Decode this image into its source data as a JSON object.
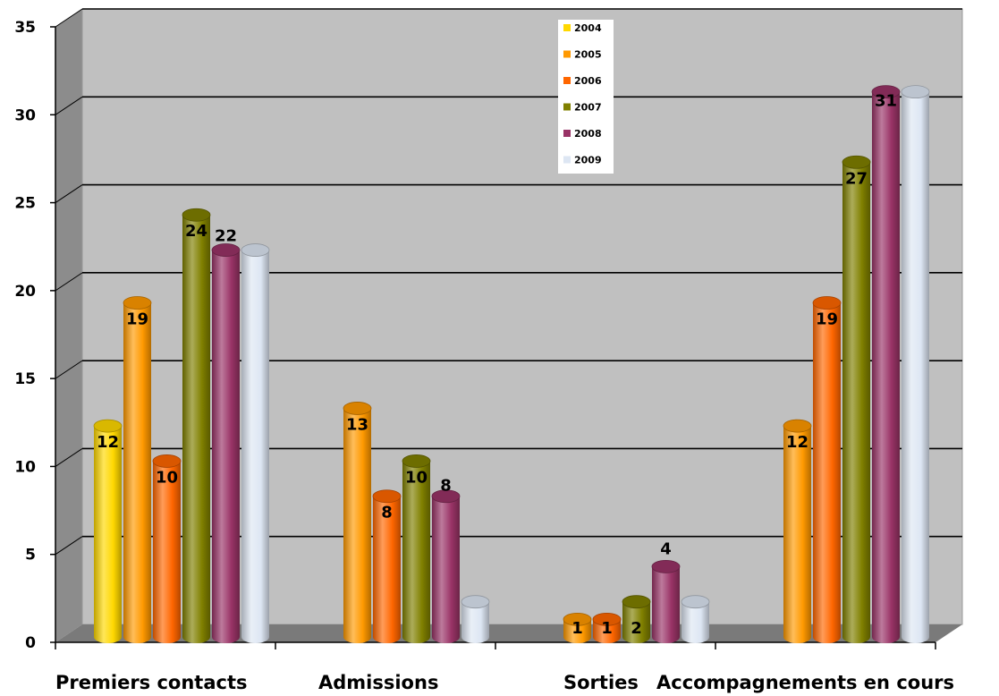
{
  "chart_data": {
    "type": "bar",
    "title": "",
    "xlabel": "",
    "ylabel": "",
    "ylim": [
      0,
      35
    ],
    "yticks": [
      0,
      5,
      10,
      15,
      20,
      25,
      30,
      35
    ],
    "grid": true,
    "legend_position": "top-center",
    "categories": [
      "Premiers contacts",
      "Admissions",
      "Sorties",
      "Accompagnements en cours"
    ],
    "series": [
      {
        "name": "2004",
        "color": "#FFD800",
        "values": [
          12,
          null,
          null,
          null
        ],
        "labels": [
          "12",
          "",
          "",
          ""
        ]
      },
      {
        "name": "2005",
        "color": "#FF9900",
        "values": [
          19,
          13,
          1,
          12
        ],
        "labels": [
          "19",
          "13",
          "1",
          "12"
        ]
      },
      {
        "name": "2006",
        "color": "#FF6600",
        "values": [
          10,
          8,
          1,
          19
        ],
        "labels": [
          "10",
          "8",
          "1",
          "19"
        ]
      },
      {
        "name": "2007",
        "color": "#808000",
        "values": [
          24,
          10,
          2,
          27
        ],
        "labels": [
          "24",
          "10",
          "2",
          "27"
        ]
      },
      {
        "name": "2008",
        "color": "#993366",
        "values": [
          22,
          8,
          4,
          31
        ],
        "labels": [
          "22",
          "8",
          "4",
          "31"
        ]
      },
      {
        "name": "2009",
        "color": "#DDE6F3",
        "values": [
          22,
          2,
          2,
          31
        ],
        "labels": [
          "",
          "",
          "",
          ""
        ]
      }
    ]
  }
}
